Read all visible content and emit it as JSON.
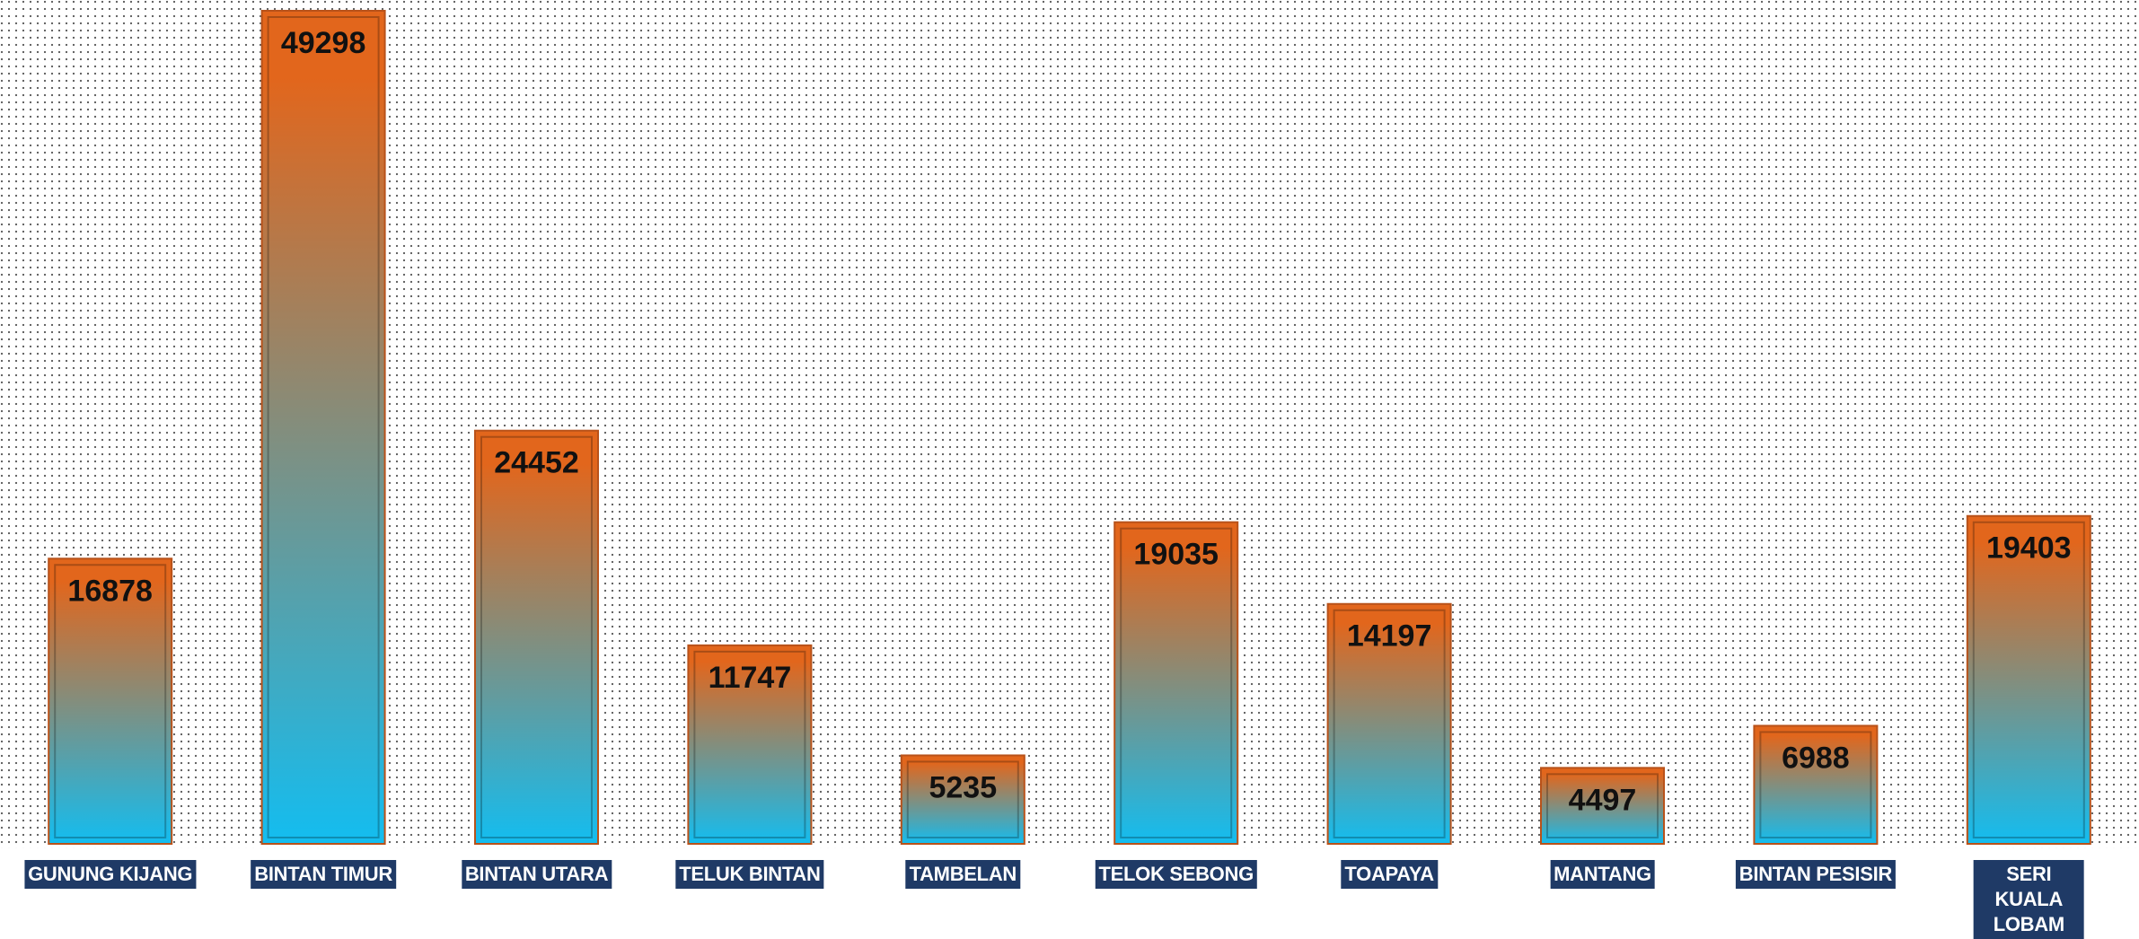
{
  "chart_data": {
    "type": "bar",
    "categories": [
      "GUNUNG KIJANG",
      "BINTAN TIMUR",
      "BINTAN UTARA",
      "TELUK BINTAN",
      "TAMBELAN",
      "TELOK SEBONG",
      "TOAPAYA",
      "MANTANG",
      "BINTAN PESISIR",
      "SERI KUALA LOBAM"
    ],
    "values": [
      16878,
      49298,
      24452,
      11747,
      5235,
      19035,
      14197,
      4497,
      6988,
      19403
    ],
    "gradient": [
      "#e2661c",
      "#13bdf0"
    ],
    "label_background": "#1f3a66"
  }
}
